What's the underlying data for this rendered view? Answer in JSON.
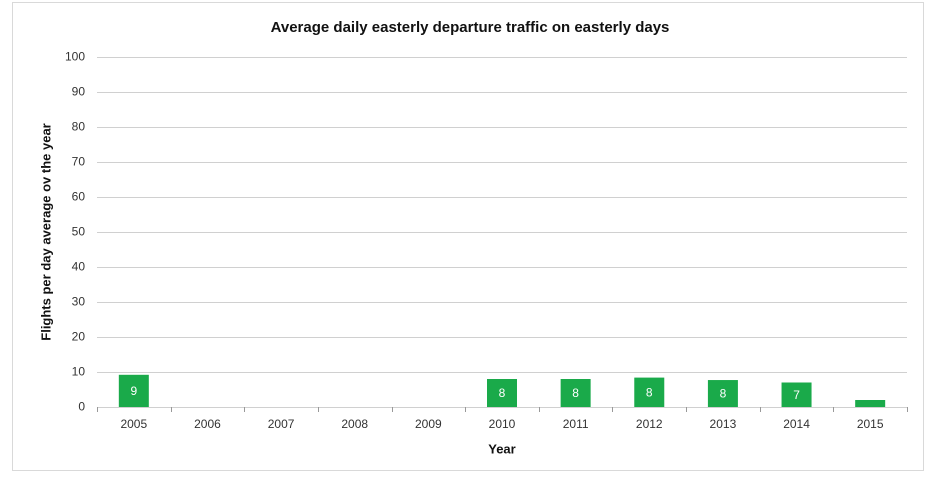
{
  "chart_data": {
    "type": "bar",
    "title": "Average daily easterly departure traffic on easterly days",
    "x_label": "Year",
    "y_label": "Flights per day average ov the year",
    "categories": [
      "2005",
      "2006",
      "2007",
      "2008",
      "2009",
      "2010",
      "2011",
      "2012",
      "2013",
      "2014",
      "2015"
    ],
    "values": [
      9.2,
      null,
      null,
      null,
      null,
      8,
      8,
      8.4,
      7.7,
      7,
      2
    ],
    "value_labels": [
      "9",
      null,
      null,
      null,
      null,
      "8",
      "8",
      "8",
      "8",
      "7",
      null
    ],
    "color": "#1aaa4a",
    "ylim": [
      0,
      100
    ],
    "yticks": [
      0,
      10,
      20,
      30,
      40,
      50,
      60,
      70,
      80,
      90,
      100
    ],
    "grid": true
  }
}
